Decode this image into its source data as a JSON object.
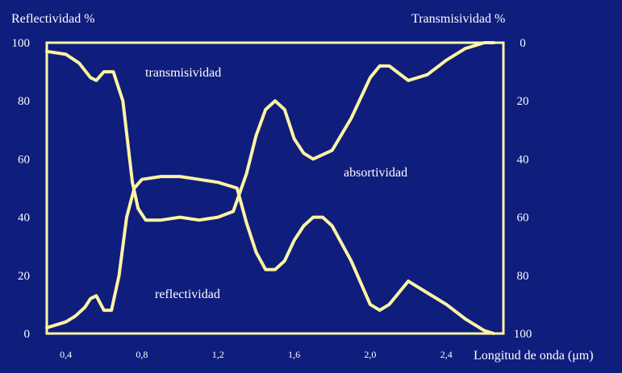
{
  "chart_data": {
    "type": "line",
    "title": "",
    "ylabel_left": "Reflectividad %",
    "ylabel_right": "Transmisividad %",
    "xlabel": "Longitud de onda (μm)",
    "xlim": [
      0.3,
      2.7
    ],
    "ylim_left": [
      0,
      100
    ],
    "ylim_right": [
      100,
      0
    ],
    "x_ticks": [
      "0,4",
      "0,8",
      "1,2",
      "1,6",
      "2,0",
      "2,4"
    ],
    "x_tick_values": [
      0.4,
      0.8,
      1.2,
      1.6,
      2.0,
      2.4
    ],
    "y_left_ticks": [
      "0",
      "20",
      "40",
      "60",
      "80",
      "100"
    ],
    "y_left_tick_values": [
      0,
      20,
      40,
      60,
      80,
      100
    ],
    "y_right_ticks": [
      "100",
      "80",
      "60",
      "40",
      "20",
      "0"
    ],
    "y_right_tick_values": [
      100,
      80,
      60,
      40,
      20,
      0
    ],
    "grid": false,
    "annotations": {
      "transmisividad": "transmisividad",
      "absortividad": "absortividad",
      "reflectividad": "reflectividad"
    },
    "series": [
      {
        "name": "transmisividad",
        "axis": "right",
        "x": [
          0.3,
          0.4,
          0.47,
          0.53,
          0.56,
          0.6,
          0.65,
          0.7,
          0.75,
          0.78,
          0.82,
          0.9,
          1.0,
          1.1,
          1.2,
          1.28,
          1.35,
          1.4,
          1.45,
          1.5,
          1.55,
          1.6,
          1.65,
          1.7,
          1.8,
          1.9,
          2.0,
          2.05,
          2.1,
          2.2,
          2.3,
          2.4,
          2.5,
          2.6,
          2.65
        ],
        "values": [
          3,
          4,
          7,
          12,
          13,
          10,
          10,
          20,
          48,
          57,
          61,
          61,
          60,
          61,
          60,
          58,
          45,
          32,
          23,
          20,
          23,
          33,
          38,
          40,
          37,
          26,
          12,
          8,
          8,
          13,
          11,
          6,
          2,
          0,
          0
        ]
      },
      {
        "name": "reflectividad",
        "axis": "left",
        "x": [
          0.3,
          0.4,
          0.45,
          0.5,
          0.53,
          0.56,
          0.6,
          0.64,
          0.68,
          0.72,
          0.76,
          0.8,
          0.9,
          1.0,
          1.1,
          1.2,
          1.3,
          1.35,
          1.4,
          1.45,
          1.5,
          1.55,
          1.6,
          1.65,
          1.7,
          1.75,
          1.8,
          1.9,
          2.0,
          2.05,
          2.1,
          2.2,
          2.3,
          2.4,
          2.5,
          2.6,
          2.65
        ],
        "values": [
          2,
          4,
          6,
          9,
          12,
          13,
          8,
          8,
          20,
          40,
          50,
          53,
          54,
          54,
          53,
          52,
          50,
          38,
          28,
          22,
          22,
          25,
          32,
          37,
          40,
          40,
          37,
          25,
          10,
          8,
          10,
          18,
          14,
          10,
          5,
          1,
          0
        ]
      }
    ]
  }
}
